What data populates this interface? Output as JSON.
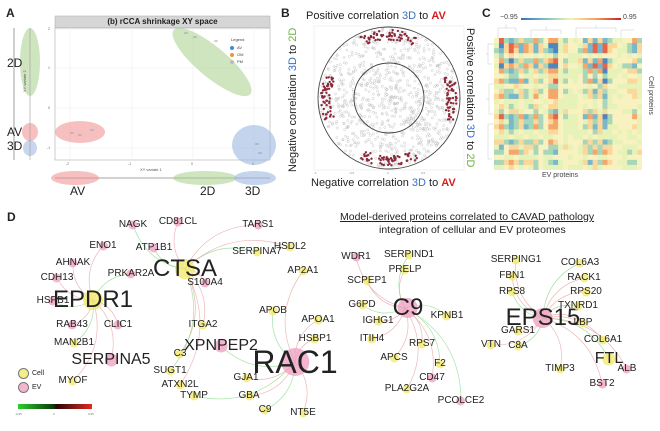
{
  "panels": {
    "A": {
      "letter": "A",
      "title": "(b) rCCA shrinkage XY space",
      "xlabel": "XY variate 1",
      "ylabel": "XY variate 2",
      "x_ticks": [
        "-2",
        "-1",
        "0",
        "1"
      ],
      "y_ticks": [
        "2",
        "1",
        "0",
        "-1"
      ],
      "legend": {
        "title": "Legend",
        "items": [
          {
            "label": "AV",
            "color": "#3a8fc9"
          },
          {
            "label": "OM",
            "color": "#e8973a"
          },
          {
            "label": "PM",
            "color": "#bbbbbb"
          }
        ]
      },
      "groups": [
        {
          "name": "2D",
          "color": "#a8cf8a"
        },
        {
          "name": "AV",
          "color": "#f08c8c"
        },
        {
          "name": "3D",
          "color": "#9bb7e0"
        }
      ],
      "side_labels": {
        "left_top": "2D",
        "left_mid1": "AV",
        "left_mid2": "3D",
        "bottom_1": "AV",
        "bottom_2": "2D",
        "bottom_3": "3D"
      }
    },
    "B": {
      "letter": "B",
      "top_prefix": "Positive correlation ",
      "top_a": "3D",
      "top_mid": " to ",
      "top_b": "AV",
      "bottom_prefix": "Negative correlation ",
      "bottom_a": "3D",
      "bottom_mid": " to ",
      "bottom_b": "AV",
      "left_prefix": "Negative correlation ",
      "left_a": "3D",
      "left_mid": " to ",
      "left_b": "2D",
      "right_prefix": "Positive correlation ",
      "right_a": "3D",
      "right_mid": " to ",
      "right_b": "2D",
      "ticks": [
        "-1",
        "-0.5",
        "0",
        "0.5",
        "1"
      ],
      "colors": {
        "3D": "#3a6fbf",
        "AV": "#d42020",
        "2D": "#6db33f"
      }
    },
    "C": {
      "letter": "C",
      "scale_min": "−0.95",
      "scale_max": "0.95",
      "xlabel": "EV proteins",
      "ylabel": "Cell proteins"
    },
    "D": {
      "letter": "D",
      "title_line1": "Model-derived proteins correlated to CAVAD pathology",
      "title_line2": "integration of cellular and EV proteomes",
      "legend": [
        {
          "label": "Cell",
          "color": "#f5ef8a"
        },
        {
          "label": "EV",
          "color": "#f4b6cf"
        }
      ],
      "scale_labels": [
        "-0.95",
        "0",
        "0.95"
      ],
      "hubs": [
        "CTSA",
        "EPDR1",
        "RAC1",
        "C9",
        "EPS15"
      ]
    }
  },
  "network_nodes": [
    {
      "label": "NAGK",
      "type": "EV",
      "size": "s"
    },
    {
      "label": "CD81CL",
      "type": "EV",
      "size": "s"
    },
    {
      "label": "ENO1",
      "type": "EV",
      "size": "s"
    },
    {
      "label": "ATP1B1",
      "type": "EV",
      "size": "s"
    },
    {
      "label": "AHNAK",
      "type": "EV",
      "size": "s"
    },
    {
      "label": "CDH13",
      "type": "EV",
      "size": "s"
    },
    {
      "label": "PRKAR2A",
      "type": "EV",
      "size": "s"
    },
    {
      "label": "CTSA",
      "type": "Cell",
      "size": "l"
    },
    {
      "label": "S100A4",
      "type": "EV",
      "size": "s"
    },
    {
      "label": "HSPB1",
      "type": "EV",
      "size": "s"
    },
    {
      "label": "EPDR1",
      "type": "Cell",
      "size": "l"
    },
    {
      "label": "RAB43",
      "type": "EV",
      "size": "s"
    },
    {
      "label": "MAN2B1",
      "type": "Cell",
      "size": "s"
    },
    {
      "label": "CLIC1",
      "type": "EV",
      "size": "s"
    },
    {
      "label": "ITGA2",
      "type": "Cell",
      "size": "s"
    },
    {
      "label": "XPNPEP2",
      "type": "EV",
      "size": "m"
    },
    {
      "label": "SERPINA5",
      "type": "EV",
      "size": "m"
    },
    {
      "label": "C3",
      "type": "Cell",
      "size": "s"
    },
    {
      "label": "SUGT1",
      "type": "Cell",
      "size": "s"
    },
    {
      "label": "ATXN2L",
      "type": "Cell",
      "size": "s"
    },
    {
      "label": "MYOF",
      "type": "Cell",
      "size": "s"
    },
    {
      "label": "TYMP",
      "type": "Cell",
      "size": "s"
    },
    {
      "label": "GJA1",
      "type": "Cell",
      "size": "s"
    },
    {
      "label": "GBA",
      "type": "Cell",
      "size": "s"
    },
    {
      "label": "C9",
      "type": "Cell",
      "size": "s"
    },
    {
      "label": "NT5E",
      "type": "Cell",
      "size": "s"
    },
    {
      "label": "TARS1",
      "type": "EV",
      "size": "s"
    },
    {
      "label": "SERPINA7",
      "type": "Cell",
      "size": "s"
    },
    {
      "label": "HSDL2",
      "type": "Cell",
      "size": "s"
    },
    {
      "label": "AP2A1",
      "type": "Cell",
      "size": "s"
    },
    {
      "label": "APOB",
      "type": "Cell",
      "size": "s"
    },
    {
      "label": "APOA1",
      "type": "Cell",
      "size": "s"
    },
    {
      "label": "HSBP1",
      "type": "Cell",
      "size": "s"
    },
    {
      "label": "RAC1",
      "type": "EV",
      "size": "xl"
    },
    {
      "label": "WDR1",
      "type": "EV",
      "size": "s"
    },
    {
      "label": "SCPEP1",
      "type": "Cell",
      "size": "s"
    },
    {
      "label": "G6PD",
      "type": "Cell",
      "size": "s"
    },
    {
      "label": "IGHG1",
      "type": "Cell",
      "size": "s"
    },
    {
      "label": "ITIH4",
      "type": "Cell",
      "size": "s"
    },
    {
      "label": "SERPIND1",
      "type": "Cell",
      "size": "s"
    },
    {
      "label": "PRELP",
      "type": "Cell",
      "size": "s"
    },
    {
      "label": "C9",
      "type": "EV",
      "size": "l"
    },
    {
      "label": "KPNB1",
      "type": "Cell",
      "size": "s"
    },
    {
      "label": "RPS7",
      "type": "Cell",
      "size": "s"
    },
    {
      "label": "APCS",
      "type": "Cell",
      "size": "s"
    },
    {
      "label": "F2",
      "type": "Cell",
      "size": "s"
    },
    {
      "label": "PLA2G2A",
      "type": "Cell",
      "size": "s"
    },
    {
      "label": "CD47",
      "type": "EV",
      "size": "s"
    },
    {
      "label": "PCOLCE2",
      "type": "EV",
      "size": "s"
    },
    {
      "label": "SERPING1",
      "type": "Cell",
      "size": "s"
    },
    {
      "label": "FBN1",
      "type": "Cell",
      "size": "s"
    },
    {
      "label": "RPS8",
      "type": "Cell",
      "size": "s"
    },
    {
      "label": "GARS1",
      "type": "Cell",
      "size": "s"
    },
    {
      "label": "VTN",
      "type": "Cell",
      "size": "s"
    },
    {
      "label": "C8A",
      "type": "Cell",
      "size": "s"
    },
    {
      "label": "TIMP3",
      "type": "Cell",
      "size": "s"
    },
    {
      "label": "EPS15",
      "type": "EV",
      "size": "l"
    },
    {
      "label": "COL6A3",
      "type": "Cell",
      "size": "s"
    },
    {
      "label": "RACK1",
      "type": "Cell",
      "size": "s"
    },
    {
      "label": "RPS20",
      "type": "Cell",
      "size": "s"
    },
    {
      "label": "TXNRD1",
      "type": "Cell",
      "size": "s"
    },
    {
      "label": "LBP",
      "type": "Cell",
      "size": "s"
    },
    {
      "label": "COL6A1",
      "type": "Cell",
      "size": "s"
    },
    {
      "label": "FTL",
      "type": "Cell",
      "size": "m"
    },
    {
      "label": "ALB",
      "type": "EV",
      "size": "s"
    },
    {
      "label": "BST2",
      "type": "EV",
      "size": "s"
    }
  ]
}
